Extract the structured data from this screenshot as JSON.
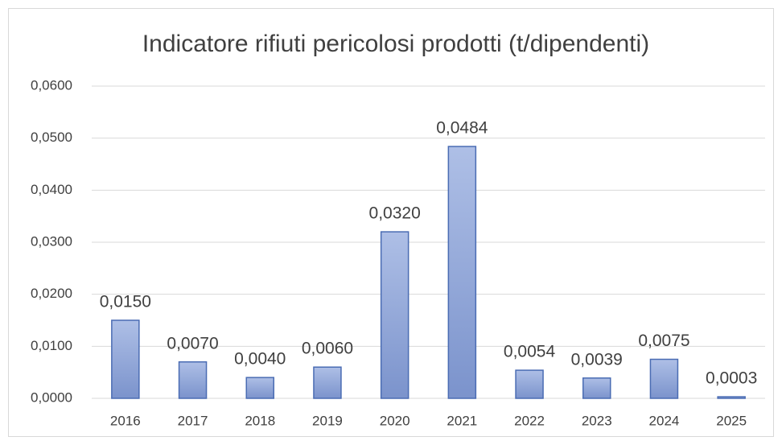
{
  "chart_data": {
    "type": "bar",
    "title": "Indicatore rifiuti pericolosi prodotti (t/dipendenti)",
    "categories": [
      "2016",
      "2017",
      "2018",
      "2019",
      "2020",
      "2021",
      "2022",
      "2023",
      "2024",
      "2025"
    ],
    "values": [
      0.015,
      0.007,
      0.004,
      0.006,
      0.032,
      0.0484,
      0.0054,
      0.0039,
      0.0075,
      0.0003
    ],
    "value_labels": [
      "0,0150",
      "0,0070",
      "0,0040",
      "0,0060",
      "0,0320",
      "0,0484",
      "0,0054",
      "0,0039",
      "0,0075",
      "0,0003"
    ],
    "color": "#8da4d8",
    "ylim": [
      0,
      0.06
    ],
    "yticks": [
      {
        "value": 0,
        "label": "0,0000"
      },
      {
        "value": 0.01,
        "label": "0,0100"
      },
      {
        "value": 0.02,
        "label": "0,0200"
      },
      {
        "value": 0.03,
        "label": "0,0300"
      },
      {
        "value": 0.04,
        "label": "0,0400"
      },
      {
        "value": 0.05,
        "label": "0,0500"
      },
      {
        "value": 0.06,
        "label": "0,0600"
      }
    ],
    "grid": true
  }
}
